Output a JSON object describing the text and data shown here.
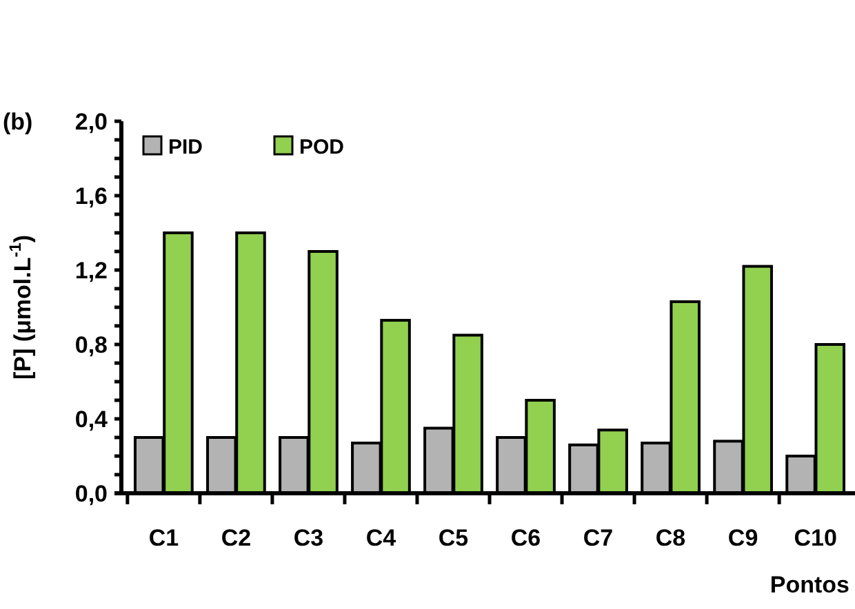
{
  "chart_data": {
    "type": "bar",
    "title": "(b)",
    "xlabel": "Pontos",
    "ylabel": "[P]  (μmol.L$^{-1}$)",
    "categories": [
      "C1",
      "C2",
      "C3",
      "C4",
      "C5",
      "C6",
      "C7",
      "C8",
      "C9",
      "C10"
    ],
    "series": [
      {
        "name": "PID",
        "color": "#b3b3b3",
        "values": [
          0.3,
          0.3,
          0.3,
          0.27,
          0.35,
          0.3,
          0.26,
          0.27,
          0.28,
          0.2
        ]
      },
      {
        "name": "POD",
        "color": "#92d050",
        "values": [
          1.4,
          1.4,
          1.3,
          0.93,
          0.85,
          0.5,
          0.34,
          1.03,
          1.22,
          0.8
        ]
      }
    ],
    "ylim": [
      0,
      2
    ],
    "yticks": [
      {
        "value": 0,
        "label": "0,0"
      },
      {
        "value": 0.1,
        "label": null
      },
      {
        "value": 0.2,
        "label": null
      },
      {
        "value": 0.3,
        "label": null
      },
      {
        "value": 0.4,
        "label": "0,4"
      },
      {
        "value": 0.5,
        "label": null
      },
      {
        "value": 0.6,
        "label": null
      },
      {
        "value": 0.7,
        "label": null
      },
      {
        "value": 0.8,
        "label": "0,8"
      },
      {
        "value": 0.9,
        "label": null
      },
      {
        "value": 1.0,
        "label": null
      },
      {
        "value": 1.1,
        "label": null
      },
      {
        "value": 1.2,
        "label": "1,2"
      },
      {
        "value": 1.3,
        "label": null
      },
      {
        "value": 1.4,
        "label": null
      },
      {
        "value": 1.5,
        "label": null
      },
      {
        "value": 1.6,
        "label": "1,6"
      },
      {
        "value": 1.7,
        "label": null
      },
      {
        "value": 1.8,
        "label": null
      },
      {
        "value": 1.9,
        "label": null
      },
      {
        "value": 2.0,
        "label": "2,0"
      }
    ],
    "grid": false,
    "legend": "top left"
  }
}
